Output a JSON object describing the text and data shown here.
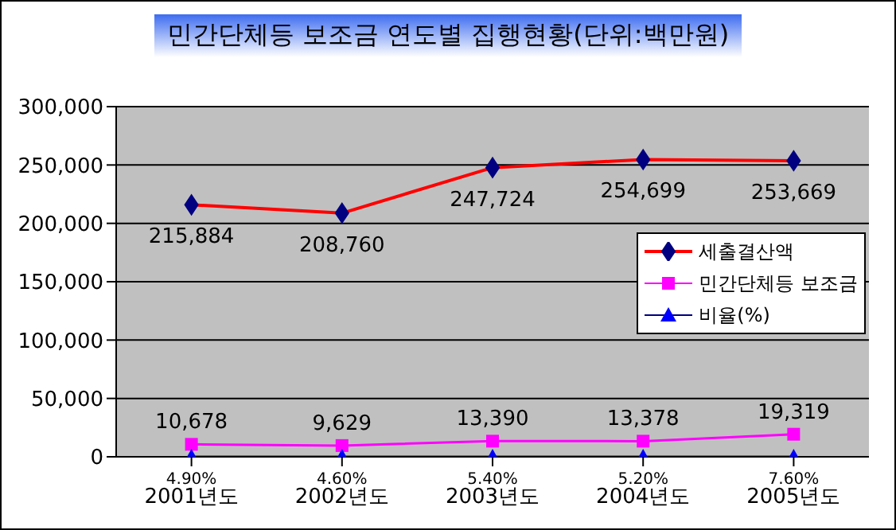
{
  "chart_data": {
    "type": "line",
    "title": "민간단체등 보조금 연도별 집행현황(단위:백만원)",
    "categories": [
      "2001년도",
      "2002년도",
      "2003년도",
      "2004년도",
      "2005년도"
    ],
    "series": [
      {
        "name": "세출결산액",
        "color": "#ff0000",
        "marker": "diamond",
        "colors": [
          "#000080",
          "#000080",
          "#000080",
          "#000080",
          "#000080"
        ],
        "values": [
          215884,
          208760,
          247724,
          254699,
          253669
        ],
        "value_labels": [
          "215,884",
          "208,760",
          "247,724",
          "254,699",
          "253,669"
        ]
      },
      {
        "name": "민간단체등 보조금",
        "color": "#ff00ff",
        "marker": "square",
        "values": [
          10678,
          9629,
          13390,
          13378,
          19319
        ],
        "value_labels": [
          "10,678",
          "9,629",
          "13,390",
          "13,378",
          "19,319"
        ]
      },
      {
        "name": "비율(%)",
        "color": "#0000ff",
        "marker": "triangle",
        "values": [
          4.9,
          4.6,
          5.4,
          5.2,
          7.6
        ],
        "value_labels": [
          "4.90%",
          "4.60%",
          "5.40%",
          "5.20%",
          "7.60%"
        ]
      }
    ],
    "ylim": [
      0,
      300000
    ],
    "yticks": [
      {
        "value": 0,
        "label": "0"
      },
      {
        "value": 50000,
        "label": "50,000"
      },
      {
        "value": 100000,
        "label": "100,000"
      },
      {
        "value": 150000,
        "label": "150,000"
      },
      {
        "value": 200000,
        "label": "200,000"
      },
      {
        "value": 250000,
        "label": "250,000"
      },
      {
        "value": 300000,
        "label": "300,000"
      }
    ],
    "grid": "y",
    "legend": "right"
  }
}
